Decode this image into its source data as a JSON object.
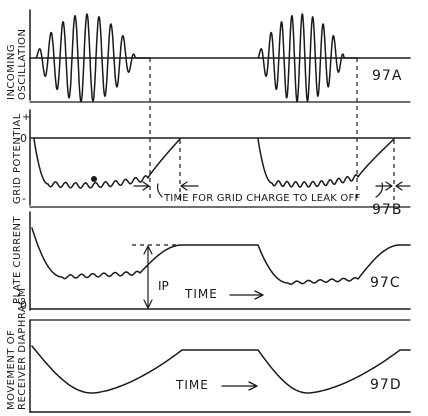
{
  "panels": [
    {
      "id": "97A",
      "ylabel_line1": "INCOMING",
      "ylabel_line2": "OSCILLATION",
      "tag": "97A",
      "axis_mark": "",
      "inline_label": ""
    },
    {
      "id": "97B",
      "ylabel_line1": "GRID POTENTIAL",
      "ylabel_line2": "",
      "tag": "97B",
      "axis_mark": "0",
      "axis_plus": "+",
      "axis_minus": "-",
      "inline_label": "TIME FOR GRID CHARGE TO LEAK OFF"
    },
    {
      "id": "97C",
      "ylabel_line1": "PLATE CURRENT",
      "ylabel_line2": "",
      "tag": "97C",
      "axis_mark": "0",
      "inline_label": "TIME",
      "ip_label": "IP"
    },
    {
      "id": "97D",
      "ylabel_line1": "MOVEMENT OF",
      "ylabel_line2": "RECEIVER DIAPHRAGM",
      "tag": "97D",
      "axis_mark": "",
      "inline_label": "TIME"
    }
  ]
}
